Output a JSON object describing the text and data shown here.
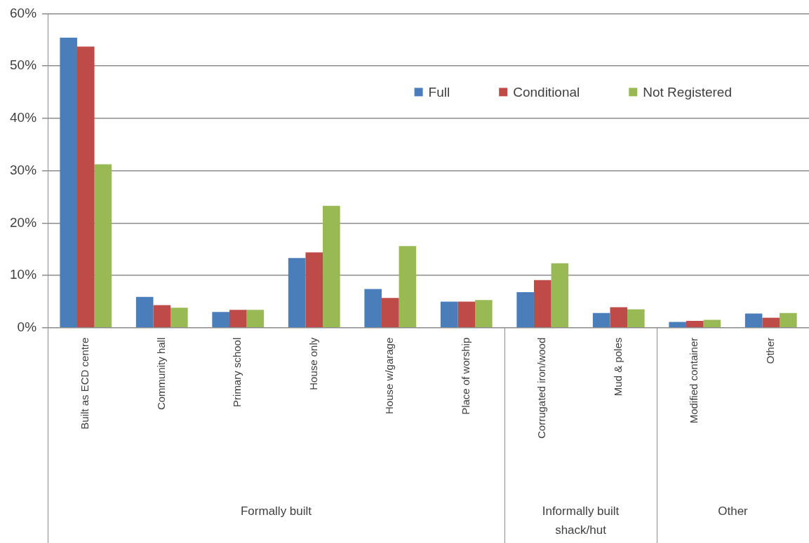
{
  "chart_data": {
    "type": "bar",
    "categories": [
      "Built as ECD centre",
      "Community hall",
      "Primary school",
      "House only",
      "House w/garage",
      "Place of worship",
      "Corrugated iron/wood",
      "Mud & poles",
      "Modified container",
      "Other"
    ],
    "series": [
      {
        "name": "Full",
        "color": "#4a7ebb",
        "values": [
          55.4,
          5.9,
          3.0,
          13.3,
          7.4,
          5.0,
          6.8,
          2.8,
          1.1,
          2.7
        ]
      },
      {
        "name": "Conditional",
        "color": "#be4b48",
        "values": [
          53.7,
          4.3,
          3.4,
          14.4,
          5.7,
          5.0,
          9.1,
          3.9,
          1.3,
          1.9
        ]
      },
      {
        "name": "Not Registered",
        "color": "#98b954",
        "values": [
          31.2,
          3.8,
          3.4,
          23.3,
          15.6,
          5.3,
          12.3,
          3.5,
          1.5,
          2.8
        ]
      }
    ],
    "ylim": [
      0,
      60
    ],
    "yticks": [
      {
        "value": 0,
        "label": "0%"
      },
      {
        "value": 10,
        "label": "10%"
      },
      {
        "value": 20,
        "label": "20%"
      },
      {
        "value": 30,
        "label": "30%"
      },
      {
        "value": 40,
        "label": "40%"
      },
      {
        "value": 50,
        "label": "50%"
      },
      {
        "value": 60,
        "label": "60%"
      }
    ],
    "grid": "y",
    "legend": "top right",
    "annotations": [
      "Formally built",
      "Informally built shack/hut",
      "Other"
    ]
  }
}
